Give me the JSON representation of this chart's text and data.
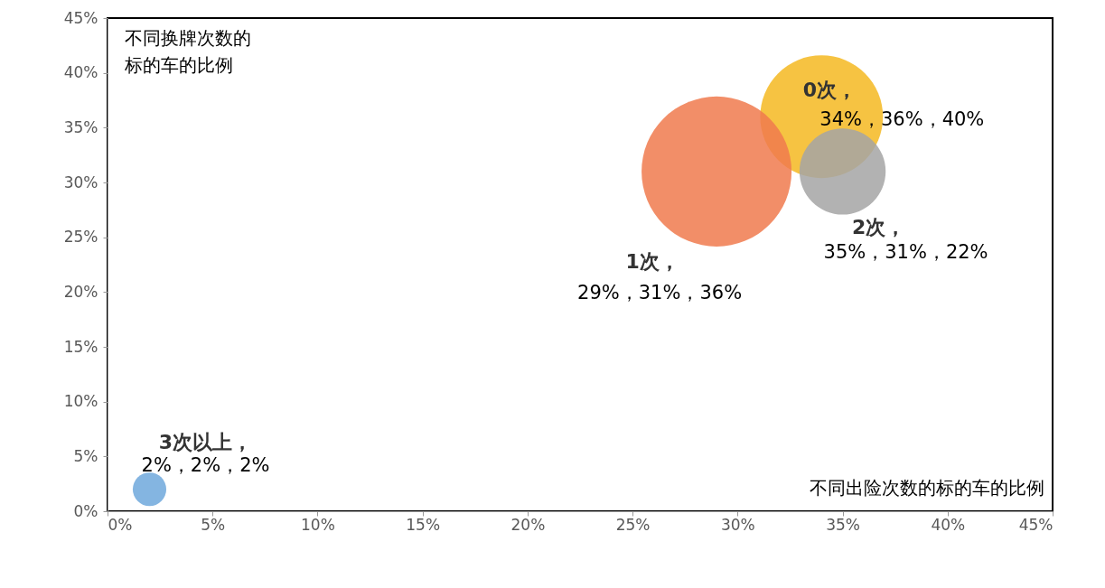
{
  "chart_data": {
    "type": "bubble",
    "xlabel": "不同出险次数的标的车的比例",
    "ylabel": "不同换牌次数的标的车的比例",
    "xlim": [
      0,
      45
    ],
    "ylim": [
      0,
      45
    ],
    "xticks": [
      {
        "value": 0,
        "label": "0%"
      },
      {
        "value": 5,
        "label": "5%"
      },
      {
        "value": 10,
        "label": "10%"
      },
      {
        "value": 15,
        "label": "15%"
      },
      {
        "value": 20,
        "label": "20%"
      },
      {
        "value": 25,
        "label": "25%"
      },
      {
        "value": 30,
        "label": "30%"
      },
      {
        "value": 35,
        "label": "35%"
      },
      {
        "value": 40,
        "label": "40%"
      },
      {
        "value": 45,
        "label": "45%"
      }
    ],
    "yticks": [
      {
        "value": 0,
        "label": "0%"
      },
      {
        "value": 5,
        "label": "5%"
      },
      {
        "value": 10,
        "label": "10%"
      },
      {
        "value": 15,
        "label": "15%"
      },
      {
        "value": 20,
        "label": "20%"
      },
      {
        "value": 25,
        "label": "25%"
      },
      {
        "value": 30,
        "label": "30%"
      },
      {
        "value": 35,
        "label": "35%"
      },
      {
        "value": 40,
        "label": "40%"
      },
      {
        "value": 45,
        "label": "45%"
      }
    ],
    "grid": false,
    "legend": false,
    "series": [
      {
        "name": "0次，",
        "color": "#f5b921",
        "x": [
          34
        ],
        "values": [
          36
        ],
        "sizes": [
          0.67
        ],
        "value_labels": [
          "34%，36%，40%"
        ]
      },
      {
        "name": "1次，",
        "color": "#f07a4e",
        "x": [
          29
        ],
        "values": [
          31
        ],
        "sizes": [
          1
        ],
        "value_labels": [
          "29%，31%，36%"
        ]
      },
      {
        "name": "2次，",
        "color": "#a5a5a5",
        "x": [
          35
        ],
        "values": [
          31
        ],
        "sizes": [
          0.33
        ],
        "value_labels": [
          "35%，31%，22%"
        ]
      },
      {
        "name": "3次以上，",
        "color": "#6fa8dc",
        "x": [
          2
        ],
        "values": [
          2
        ],
        "sizes": [
          0.05
        ],
        "value_labels": [
          "2%，2%，2%"
        ]
      }
    ]
  }
}
